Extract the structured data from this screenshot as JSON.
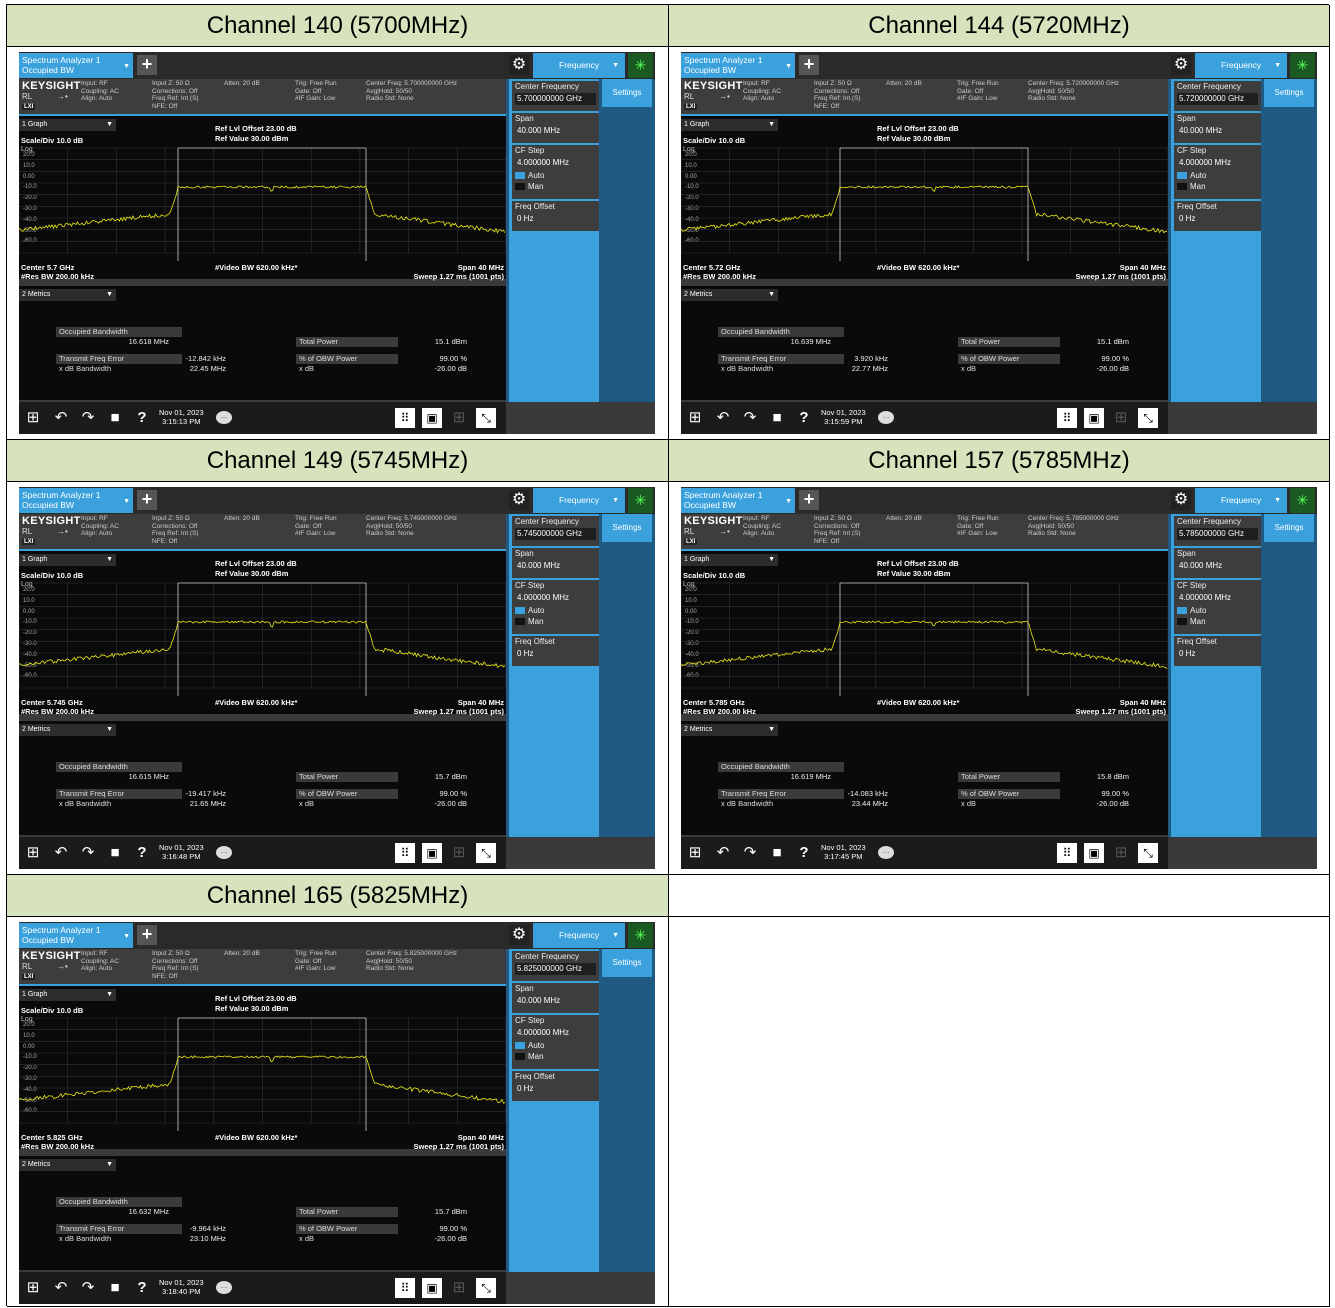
{
  "common": {
    "app_selector_line1": "Spectrum Analyzer 1",
    "app_selector_line2": "Occupied BW",
    "plus_glyph": "+",
    "gear_glyph": "⚙",
    "menu_label": "Frequency",
    "spinner_glyph": "✳",
    "brand": "KEYSIGHT",
    "rl": "RL",
    "arrow_glyph": "→•",
    "lxi": "LXI",
    "input_col1": [
      "Input: RF",
      "Coupling: AC",
      "Align: Auto"
    ],
    "input_col2": [
      "Input Z: 50 Ω",
      "Corrections: Off",
      "Freq Ref: Int (S)",
      "NFE: Off"
    ],
    "input_col3": [
      "Atten: 20 dB"
    ],
    "input_col4": [
      "Trig: Free Run",
      "Gate: Off",
      "#IF Gain: Low"
    ],
    "input_col5_rest": [
      "Avg|Hold: 50/50",
      "Radio Std: None"
    ],
    "graph_selector": "1 Graph",
    "ref_offset": "Ref Lvl Offset 23.00 dB",
    "ref_value": "Ref Value 30.00 dBm",
    "scale_div": "Scale/Div 10.0 dB",
    "log": "Log",
    "y_ticks": [
      "20.0",
      "10.0",
      "0.00",
      "-10.0",
      "-20.0",
      "-30.0",
      "-40.0",
      "-50.0",
      "-60.0"
    ],
    "video_bw": "#Video BW 620.00 kHz*",
    "span_label": "Span 40 MHz",
    "res_bw": "#Res BW 200.00 kHz",
    "sweep": "Sweep 1.27 ms (1001 pts)",
    "metrics_selector": "2 Metrics",
    "obw_label": "Occupied Bandwidth",
    "total_power_label": "Total Power",
    "tfe_label": "Transmit Freq Error",
    "xdb_bw_label": "x dB Bandwidth",
    "pct_obw_label": "% of OBW Power",
    "xdb_label": "x dB",
    "pct_obw_value": "99.00 %",
    "xdb_value": "-26.00 dB",
    "sk_center_label": "Center Frequency",
    "sk_span_label": "Span",
    "sk_span_value": "40.000 MHz",
    "sk_cfstep_label": "CF Step",
    "sk_cfstep_value": "4.000000 MHz",
    "sk_auto": "Auto",
    "sk_man": "Man",
    "sk_offset_label": "Freq Offset",
    "sk_offset_value": "0 Hz",
    "settings_label": "Settings",
    "date": "Nov 01, 2023",
    "taskbar_glyphs": [
      "⊞",
      "↶",
      "↷",
      "■",
      "?",
      "⠿",
      "▣",
      "⊞",
      "⤡"
    ],
    "chat_glyph": "…",
    "accent": "#3aa1dc",
    "trace_color": "#e8e81a",
    "header_bg": "#d6e3bc"
  },
  "channels": [
    {
      "title": "Channel 140 (5700MHz)",
      "center_freq_info": "Center Freq: 5.700000000 GHz",
      "center_label": "Center 5.7 GHz",
      "center_freq_value": "5.700000000 GHz",
      "obw_value": "16.618 MHz",
      "total_power": "15.1 dBm",
      "tfe": "-12.842 kHz",
      "xdb_bw": "22.45 MHz",
      "time": "3:15:13 PM"
    },
    {
      "title": "Channel 144 (5720MHz)",
      "center_freq_info": "Center Freq: 5.720000000 GHz",
      "center_label": "Center 5.72 GHz",
      "center_freq_value": "5.720000000 GHz",
      "obw_value": "16.639 MHz",
      "total_power": "15.1 dBm",
      "tfe": "3.920 kHz",
      "xdb_bw": "22.77 MHz",
      "time": "3:15:59 PM"
    },
    {
      "title": "Channel 149 (5745MHz)",
      "center_freq_info": "Center Freq: 5.745000000 GHz",
      "center_label": "Center 5.745 GHz",
      "center_freq_value": "5.745000000 GHz",
      "obw_value": "16.615 MHz",
      "total_power": "15.7 dBm",
      "tfe": "-19.417 kHz",
      "xdb_bw": "21.65 MHz",
      "time": "3:16:48 PM"
    },
    {
      "title": "Channel 157 (5785MHz)",
      "center_freq_info": "Center Freq: 5.785000000 GHz",
      "center_label": "Center 5.785 GHz",
      "center_freq_value": "5.785000000 GHz",
      "obw_value": "16.619 MHz",
      "total_power": "15.8 dBm",
      "tfe": "-14.083 kHz",
      "xdb_bw": "23.44 MHz",
      "time": "3:17:45 PM"
    },
    {
      "title": "Channel 165 (5825MHz)",
      "center_freq_info": "Center Freq: 5.825000000 GHz",
      "center_label": "Center 5.825 GHz",
      "center_freq_value": "5.825000000 GHz",
      "obw_value": "16.632 MHz",
      "total_power": "15.7 dBm",
      "tfe": "-9.964 kHz",
      "xdb_bw": "23.10 MHz",
      "time": "3:18:40 PM"
    }
  ]
}
